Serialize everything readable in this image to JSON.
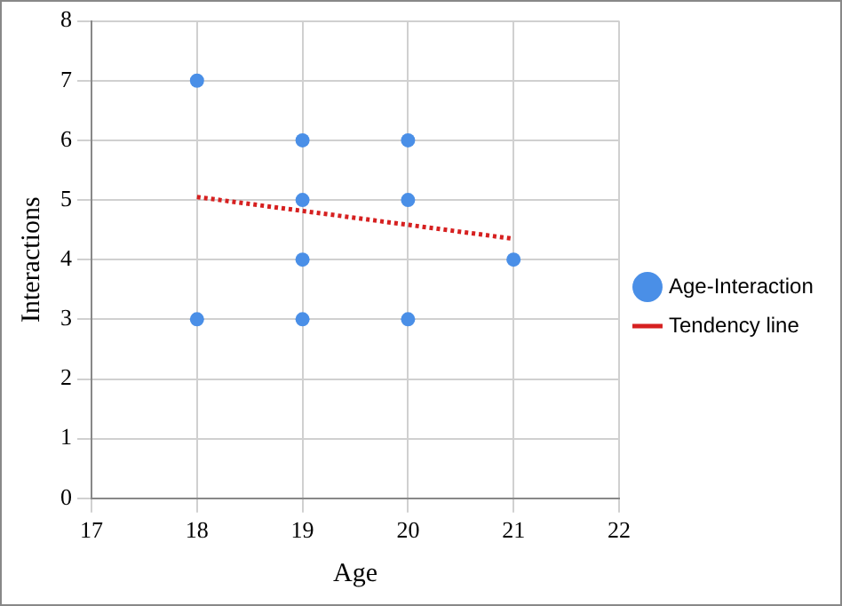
{
  "chart_data": {
    "type": "scatter",
    "xlabel": "Age",
    "ylabel": "Interactions",
    "xlim": [
      17,
      22
    ],
    "xticks": [
      17,
      18,
      19,
      20,
      21,
      22
    ],
    "ylim": [
      0,
      8
    ],
    "yticks": [
      0,
      1,
      2,
      3,
      4,
      5,
      6,
      7,
      8
    ],
    "grid": true,
    "legend": "right",
    "marker": "circle",
    "series": [
      {
        "name": "Age-Interaction",
        "color": "#4a8fe7",
        "x": [
          18,
          18,
          19,
          19,
          19,
          19,
          20,
          20,
          20,
          21
        ],
        "values": [
          7,
          3,
          6,
          5,
          4,
          3,
          6,
          5,
          3,
          4
        ]
      },
      {
        "name": "Tendency line",
        "type": "line",
        "line_style": "dotted",
        "marker": "none",
        "color": "#d62020",
        "x": [
          18,
          21
        ],
        "values": [
          5.05,
          4.35
        ]
      }
    ]
  }
}
